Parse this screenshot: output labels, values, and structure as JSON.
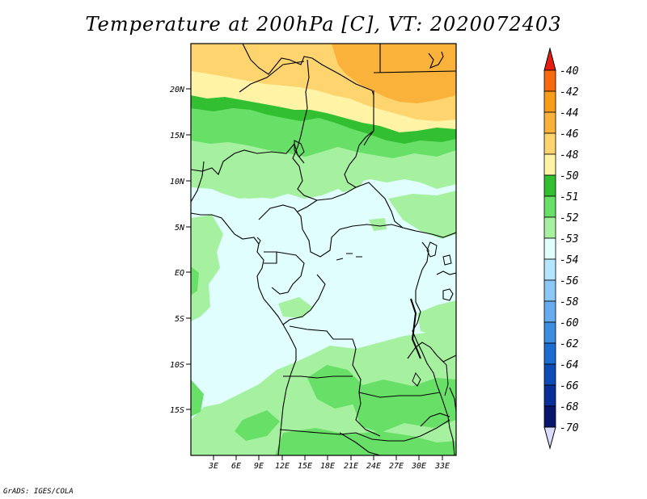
{
  "title": "Temperature at 200hPa [C], VT: 2020072403",
  "credit": "GrADS: IGES/COLA",
  "lat_labels": [
    "20N",
    "15N",
    "10N",
    "5N",
    "EQ",
    "5S",
    "10S",
    "15S"
  ],
  "lon_labels": [
    "3E",
    "6E",
    "9E",
    "12E",
    "15E",
    "18E",
    "21E",
    "24E",
    "27E",
    "30E",
    "33E"
  ],
  "colorbar": {
    "labels": [
      "-40",
      "-42",
      "-44",
      "-46",
      "-48",
      "-50",
      "-51",
      "-52",
      "-53",
      "-54",
      "-56",
      "-58",
      "-60",
      "-62",
      "-64",
      "-66",
      "-68",
      "-70"
    ],
    "colors": [
      "#f03c14",
      "#f66a0e",
      "#f99c1a",
      "#fab23a",
      "#fdd46e",
      "#fff3a6",
      "#32c032",
      "#68e068",
      "#a6f1a0",
      "#e0fefe",
      "#b4e6ff",
      "#8cc8f5",
      "#66acef",
      "#3d8ee0",
      "#1c6cd2",
      "#0e4bb7",
      "#0a2f98",
      "#08166e"
    ],
    "top_color": "#e61e12",
    "bottom_color": "#dcdcff"
  }
}
